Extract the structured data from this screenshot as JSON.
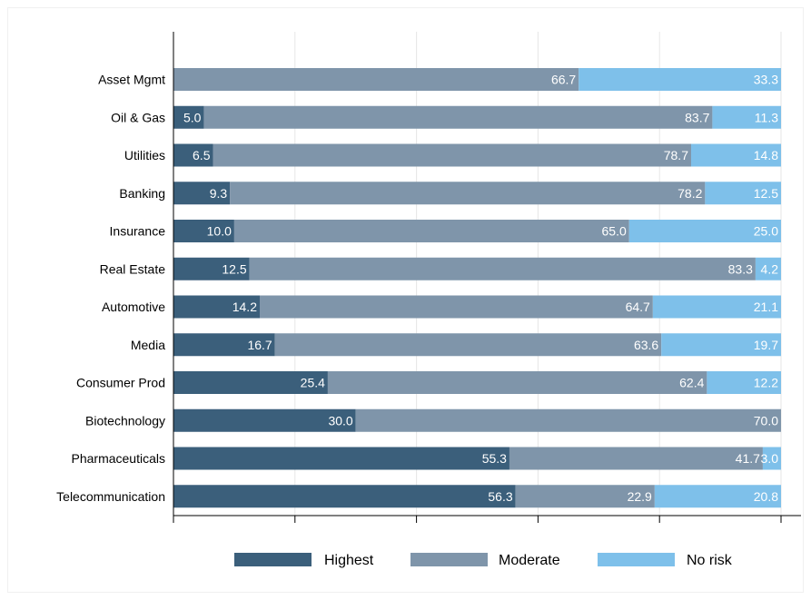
{
  "chart_data": {
    "type": "bar",
    "orientation": "horizontal",
    "stacked": true,
    "categories": [
      "Asset Mgmt",
      "Oil & Gas",
      "Utilities",
      "Banking",
      "Insurance",
      "Real Estate",
      "Automotive",
      "Media",
      "Consumer Prod",
      "Biotechnology",
      "Pharmaceuticals",
      "Telecommunication"
    ],
    "series": [
      {
        "name": "Highest",
        "color": "#3b5f7b",
        "values": [
          0,
          5.0,
          6.5,
          9.3,
          10.0,
          12.5,
          14.2,
          16.7,
          25.4,
          30.0,
          55.3,
          56.3
        ]
      },
      {
        "name": "Moderate",
        "color": "#7f95aa",
        "values": [
          66.7,
          83.7,
          78.7,
          78.2,
          65.0,
          83.3,
          64.7,
          63.6,
          62.4,
          70.0,
          41.7,
          22.9
        ]
      },
      {
        "name": "No risk",
        "color": "#7ec0ea",
        "values": [
          33.3,
          11.3,
          14.8,
          12.5,
          25.0,
          4.2,
          21.1,
          19.7,
          12.2,
          0,
          3.0,
          20.8
        ]
      }
    ],
    "xlim": [
      0,
      100
    ],
    "grid": true,
    "legend": "bottom",
    "title": "",
    "xlabel": "",
    "ylabel": ""
  }
}
